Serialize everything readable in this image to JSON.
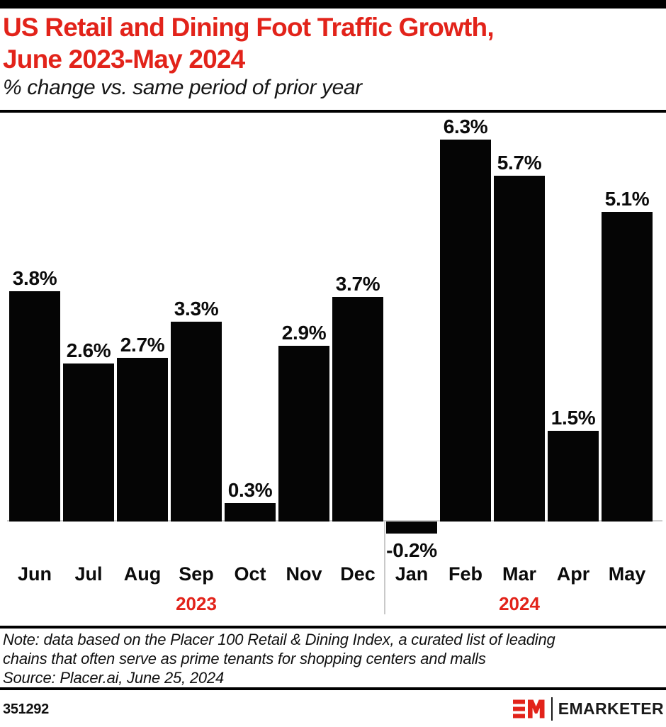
{
  "header": {
    "title_line1": "US Retail and Dining Foot Traffic Growth,",
    "title_line2": "June 2023-May 2024",
    "subtitle": "% change vs. same period of prior year"
  },
  "chart_data": {
    "type": "bar",
    "title": "US Retail and Dining Foot Traffic Growth, June 2023-May 2024",
    "subtitle": "% change vs. same period of prior year",
    "categories": [
      "Jun",
      "Jul",
      "Aug",
      "Sep",
      "Oct",
      "Nov",
      "Dec",
      "Jan",
      "Feb",
      "Mar",
      "Apr",
      "May"
    ],
    "values": [
      3.8,
      2.6,
      2.7,
      3.3,
      0.3,
      2.9,
      3.7,
      -0.2,
      6.3,
      5.7,
      1.5,
      5.1
    ],
    "data_labels": [
      "3.8%",
      "2.6%",
      "2.7%",
      "3.3%",
      "0.3%",
      "2.9%",
      "3.7%",
      "-0.2%",
      "6.3%",
      "5.7%",
      "1.5%",
      "5.1%"
    ],
    "year_groups": [
      {
        "label": "2023",
        "center_index": 3
      },
      {
        "label": "2024",
        "center_index": 9
      }
    ],
    "divider_after_index": 6,
    "ylim": [
      -0.5,
      6.8
    ],
    "grid": false,
    "legend": "none",
    "bar_color": "#050505",
    "accent_color": "#e2231a",
    "axis_line_color": "#cfcfcf"
  },
  "footnote": {
    "note_line1": "Note: data based on the Placer 100 Retail & Dining Index, a curated list of leading",
    "note_line2": "chains that often serve as prime tenants for shopping centers and malls",
    "source": "Source: Placer.ai, June 25, 2024"
  },
  "footer": {
    "chart_id": "351292",
    "brand": "EMARKETER"
  }
}
